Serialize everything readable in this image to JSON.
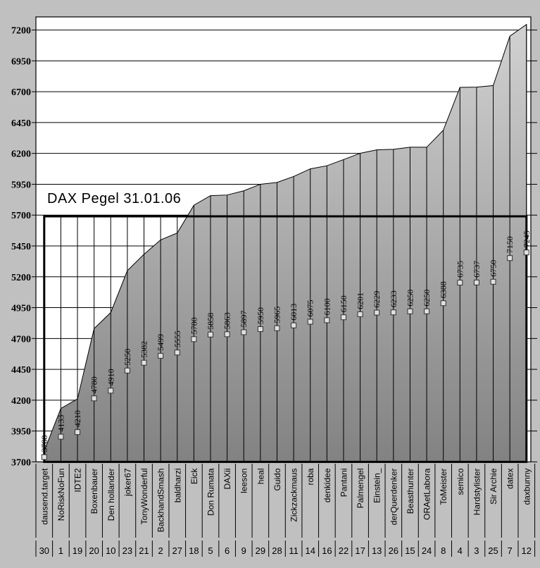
{
  "page": {
    "background": "#c0c0c0"
  },
  "chart_data": {
    "type": "area",
    "title": "DAX Pegel 31.01.06",
    "categories": [
      "dausend.target",
      "NoRiskNoFun",
      "IDTE2",
      "Boxenbauer",
      "Den hollander",
      "joker67",
      "TonyWonderful",
      "BackhandSmash",
      "baldharzi",
      "Eick",
      "Don Rumata",
      "DAXii",
      "leeson",
      "heal",
      "Guido",
      "Zickzackmaus",
      "roba",
      "denkidee",
      "Pantani",
      "Palmengel",
      "Einstein_",
      "derQuerdenker",
      "Beasthunter",
      "ORAetLabora",
      "ToMeister",
      "semico",
      "Hardstylister",
      "Sir Archie",
      "datex",
      "daxbunny"
    ],
    "ranks": [
      30,
      1,
      19,
      20,
      10,
      23,
      21,
      2,
      27,
      18,
      5,
      6,
      9,
      29,
      28,
      11,
      14,
      16,
      22,
      17,
      13,
      26,
      15,
      24,
      8,
      4,
      3,
      25,
      7,
      12
    ],
    "values": [
      3788,
      4133,
      4210,
      4780,
      4910,
      5250,
      5382,
      5499,
      5555,
      5780,
      5858,
      5863,
      5897,
      5950,
      5965,
      6013,
      6075,
      6100,
      6150,
      6201,
      6229,
      6233,
      6250,
      6250,
      6388,
      6735,
      6737,
      6750,
      7150,
      7245
    ],
    "reference_level": 5690,
    "reference_label": "DAX Pegel 31.01.06 Box",
    "ylim": [
      3700,
      7200
    ],
    "ytick_step": 250,
    "yticks": [
      3700,
      3950,
      4200,
      4450,
      4700,
      4950,
      5200,
      5450,
      5700,
      5950,
      6200,
      6450,
      6700,
      6950,
      7200
    ],
    "grid": {
      "horizontal_major": true,
      "category_drop_lines": true
    },
    "legend": "none",
    "colors": {
      "page_bg": "#c0c0c0",
      "plot_bg": "#ffffff",
      "area_top": "#d3d3d3",
      "area_bottom": "#828282",
      "line": "#000000",
      "marker_fill": "#e0e0e0",
      "reference_line": "#000000"
    }
  }
}
